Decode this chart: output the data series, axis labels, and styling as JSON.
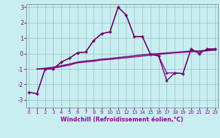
{
  "xlabel": "Windchill (Refroidissement éolien,°C)",
  "x_values": [
    0,
    1,
    2,
    3,
    4,
    5,
    6,
    7,
    8,
    9,
    10,
    11,
    12,
    13,
    14,
    15,
    16,
    17,
    18,
    19,
    20,
    21,
    22,
    23
  ],
  "series1": [
    -2.5,
    -2.6,
    -1.0,
    -1.0,
    -0.55,
    -0.3,
    0.05,
    0.1,
    0.85,
    1.3,
    1.4,
    3.0,
    2.5,
    1.1,
    1.1,
    -0.05,
    -0.15,
    -1.25,
    -1.25,
    -1.3,
    0.3,
    0.0,
    0.3,
    0.3
  ],
  "series2": [
    -2.5,
    -2.6,
    -1.0,
    -1.0,
    -0.55,
    -0.3,
    0.05,
    0.1,
    0.85,
    1.3,
    1.4,
    3.0,
    2.5,
    1.1,
    1.1,
    -0.05,
    -0.15,
    -1.75,
    -1.25,
    -1.3,
    0.3,
    0.0,
    0.3,
    0.3
  ],
  "series3": [
    null,
    -1.0,
    -1.0,
    -0.95,
    -0.85,
    -0.75,
    -0.6,
    -0.55,
    -0.5,
    -0.42,
    -0.38,
    -0.32,
    -0.28,
    -0.22,
    -0.16,
    -0.1,
    -0.06,
    0.0,
    0.05,
    0.08,
    0.12,
    0.12,
    0.18,
    0.22
  ],
  "series4": [
    null,
    -1.0,
    -0.95,
    -0.88,
    -0.78,
    -0.68,
    -0.55,
    -0.48,
    -0.43,
    -0.36,
    -0.32,
    -0.26,
    -0.2,
    -0.14,
    -0.08,
    -0.03,
    0.0,
    0.04,
    0.08,
    0.12,
    0.17,
    0.17,
    0.22,
    0.27
  ],
  "line_color": "#990099",
  "bg_color": "#c8eef0",
  "grid_color": "#9bbcbe",
  "ylim": [
    -3.5,
    3.2
  ],
  "yticks": [
    -3,
    -2,
    -1,
    0,
    1,
    2,
    3
  ],
  "xlim": [
    -0.3,
    23.3
  ]
}
